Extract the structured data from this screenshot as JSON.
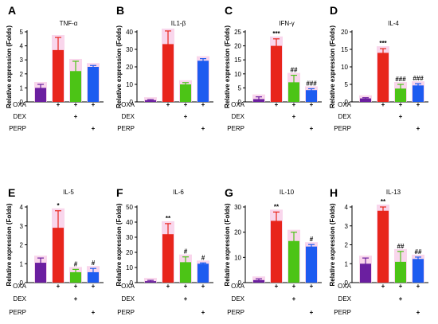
{
  "figure": {
    "conditions": [
      "OXA",
      "DEX",
      "PERP"
    ],
    "design": [
      [
        false,
        false,
        false
      ],
      [
        true,
        false,
        false
      ],
      [
        true,
        true,
        false
      ],
      [
        true,
        false,
        true
      ]
    ],
    "bar_colors": [
      "#6B1FA0",
      "#E8251C",
      "#4CC416",
      "#1E5BF0"
    ],
    "highlight_color": "#F7C8E6"
  },
  "chart_data": [
    {
      "panel": "A",
      "type": "bar",
      "title": "TNF-α",
      "ylabel": "Relative expression (Folds)",
      "ylim": [
        0,
        5
      ],
      "yticks": [
        0,
        1,
        2,
        3,
        4,
        5
      ],
      "values": [
        1.0,
        3.7,
        2.2,
        2.5
      ],
      "errors": [
        0.25,
        0.9,
        0.7,
        0.1
      ],
      "annotations": [
        "",
        "",
        "",
        ""
      ]
    },
    {
      "panel": "B",
      "type": "bar",
      "title": "IL1-β",
      "ylabel": "Relative expression (Folds)",
      "ylim": [
        0,
        40
      ],
      "yticks": [
        0,
        10,
        20,
        30,
        40
      ],
      "values": [
        1.0,
        33,
        10,
        23.5
      ],
      "errors": [
        0.3,
        7.5,
        1.0,
        1.2
      ],
      "annotations": [
        "",
        "",
        "",
        ""
      ]
    },
    {
      "panel": "C",
      "type": "bar",
      "title": "IFN-γ",
      "ylabel": "Relative expression (Folds)",
      "ylim": [
        0,
        25
      ],
      "yticks": [
        0,
        5,
        10,
        15,
        20,
        25
      ],
      "values": [
        1.0,
        20,
        7,
        4.2
      ],
      "errors": [
        0.8,
        2.5,
        2.5,
        0.5
      ],
      "annotations": [
        "",
        "***",
        "##",
        "###"
      ]
    },
    {
      "panel": "D",
      "type": "bar",
      "title": "IL-4",
      "ylabel": "Relative expression (Folds)",
      "ylim": [
        0,
        20
      ],
      "yticks": [
        0,
        5,
        10,
        15,
        20
      ],
      "values": [
        1.0,
        14,
        3.8,
        4.7
      ],
      "errors": [
        0.2,
        1.2,
        1.2,
        0.5
      ],
      "annotations": [
        "",
        "***",
        "###",
        "###"
      ]
    },
    {
      "panel": "E",
      "type": "bar",
      "title": "IL-5",
      "ylabel": "Relative expression (Folds)",
      "ylim": [
        0,
        4
      ],
      "yticks": [
        0,
        1,
        2,
        3,
        4
      ],
      "values": [
        1.05,
        2.9,
        0.55,
        0.55
      ],
      "errors": [
        0.25,
        0.9,
        0.15,
        0.2
      ],
      "annotations": [
        "",
        "*",
        "#",
        "#"
      ]
    },
    {
      "panel": "F",
      "type": "bar",
      "title": "IL-6",
      "ylabel": "Relative expression (Folds)",
      "ylim": [
        0,
        50
      ],
      "yticks": [
        0,
        10,
        20,
        30,
        40,
        50
      ],
      "values": [
        1.0,
        32,
        13.5,
        12.5
      ],
      "errors": [
        0.5,
        7,
        3.5,
        0.5
      ],
      "annotations": [
        "",
        "**",
        "#",
        "#"
      ]
    },
    {
      "panel": "G",
      "type": "bar",
      "title": "IL-10",
      "ylabel": "Relative expression (Folds)",
      "ylim": [
        0,
        30
      ],
      "yticks": [
        0,
        10,
        20,
        30
      ],
      "values": [
        1.0,
        24.5,
        16.5,
        14.3
      ],
      "errors": [
        0.5,
        3.5,
        3.5,
        0.8
      ],
      "annotations": [
        "",
        "**",
        "",
        "#"
      ]
    },
    {
      "panel": "H",
      "type": "bar",
      "title": "IL-13",
      "ylabel": "Relative expression (Folds)",
      "ylim": [
        0,
        4
      ],
      "yticks": [
        0,
        1,
        2,
        3,
        4
      ],
      "values": [
        1.0,
        3.8,
        1.1,
        1.25
      ],
      "errors": [
        0.3,
        0.2,
        0.55,
        0.1
      ],
      "annotations": [
        "",
        "**",
        "##",
        "##"
      ]
    }
  ]
}
